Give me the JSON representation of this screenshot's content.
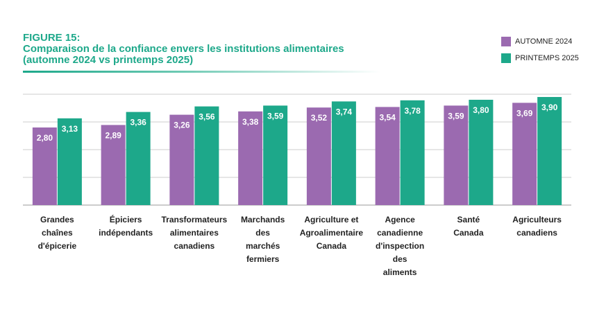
{
  "header": {
    "figure_label": "FIGURE 15:",
    "title_line1": "Comparaison de la confiance envers les institutions alimentaires",
    "title_line2": "(automne 2024 vs printemps 2025)"
  },
  "colors": {
    "autumn": "#9b6ab0",
    "spring": "#1da88a",
    "title": "#1da88a",
    "gridline": "#cccccc",
    "value_text": "#ffffff"
  },
  "chart_data": {
    "type": "bar",
    "categories": [
      "Grandes\nchaînes\nd'épicerie",
      "Épiciers\nindépendants",
      "Transformateurs\nalimentaires\ncanadiens",
      "Marchands\ndes\nmarchés\nfermiers",
      "Agriculture et\nAgroalimentaire\nCanada",
      "Agence\ncanadienne\nd'inspection\ndes\naliments",
      "Santé\nCanada",
      "Agriculteurs\ncanadiens"
    ],
    "series": [
      {
        "name": "AUTOMNE 2024",
        "values": [
          2.8,
          2.89,
          3.26,
          3.38,
          3.52,
          3.54,
          3.59,
          3.69
        ],
        "labels": [
          "2,80",
          "2,89",
          "3,26",
          "3,38",
          "3,52",
          "3,54",
          "3,59",
          "3,69"
        ]
      },
      {
        "name": "PRINTEMPS 2025",
        "values": [
          3.13,
          3.36,
          3.56,
          3.59,
          3.74,
          3.78,
          3.8,
          3.9
        ],
        "labels": [
          "3,13",
          "3,36",
          "3,56",
          "3,59",
          "3,74",
          "3,78",
          "3,80",
          "3,90"
        ]
      }
    ],
    "ylim": [
      0,
      4
    ],
    "grid": true,
    "legend_position": "top-right"
  }
}
